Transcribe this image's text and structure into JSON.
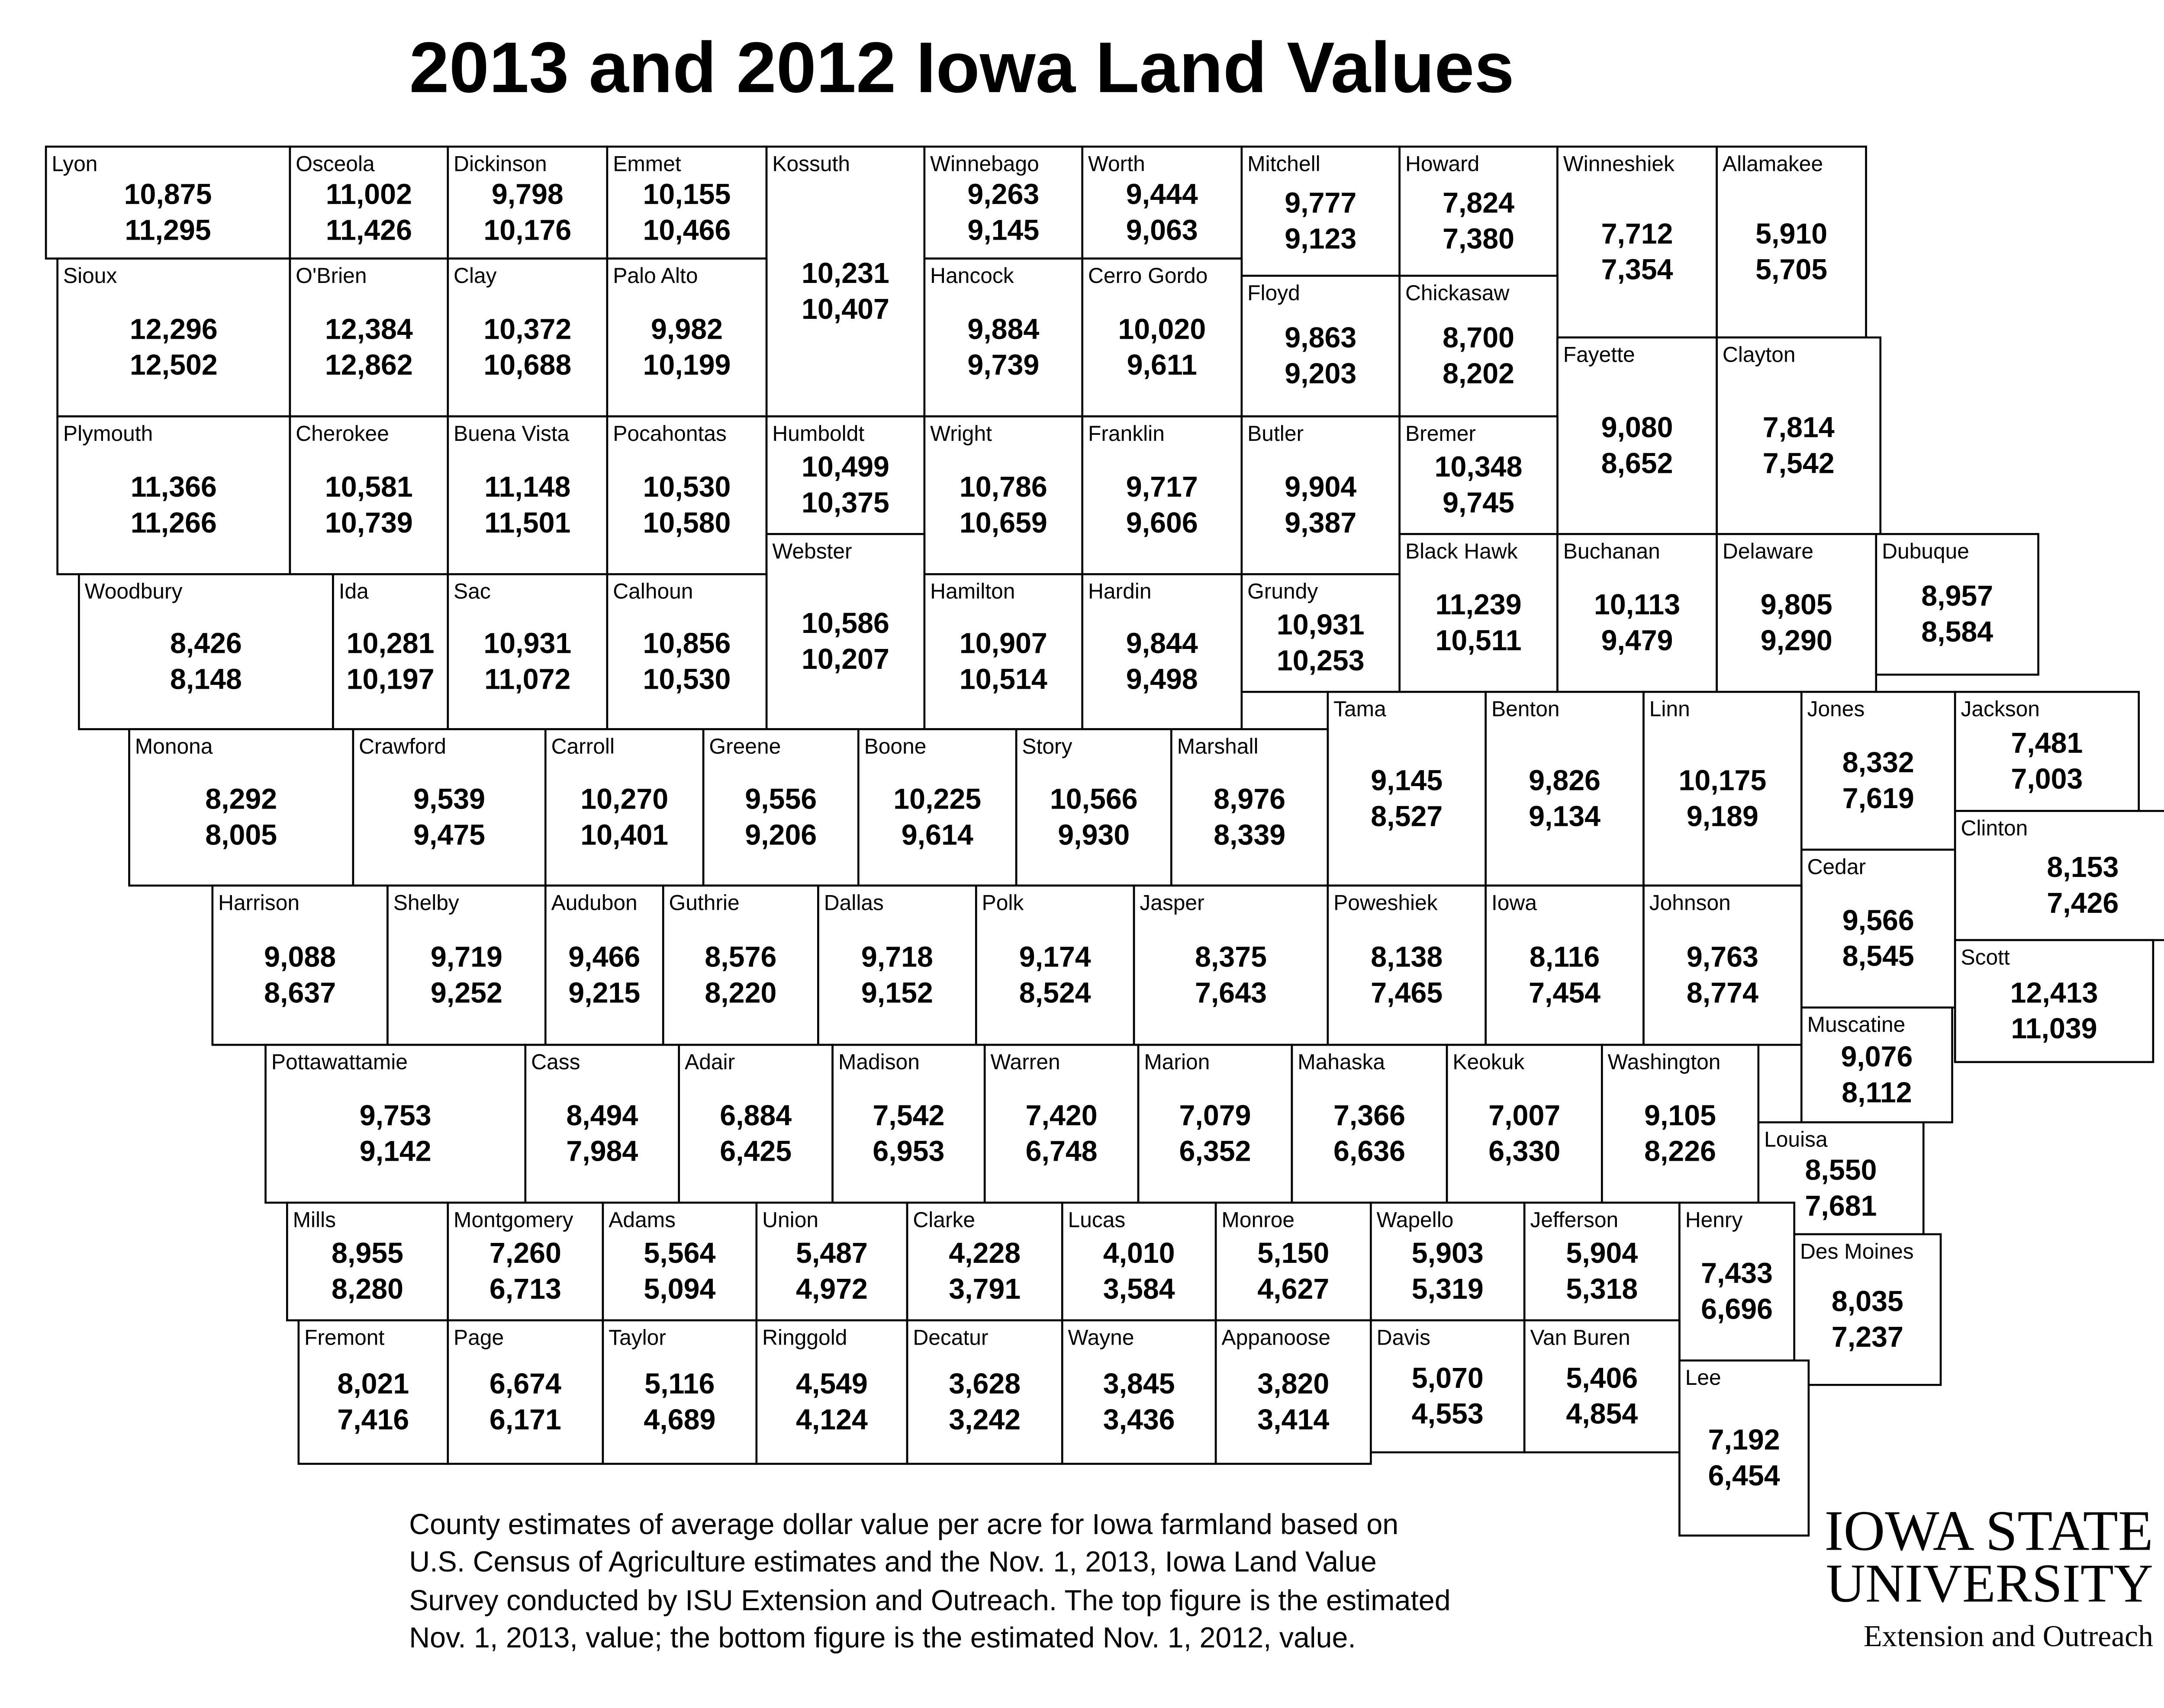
{
  "title": "2013 and 2012 Iowa Land Values",
  "counties": [
    [
      "Lyon",
      "10,875",
      "11,295"
    ],
    [
      "Osceola",
      "11,002",
      "11,426"
    ],
    [
      "Dickinson",
      "9,798",
      "10,176"
    ],
    [
      "Emmet",
      "10,155",
      "10,466"
    ],
    [
      "Kossuth",
      "10,231",
      "10,407"
    ],
    [
      "Winnebago",
      "9,263",
      "9,145"
    ],
    [
      "Worth",
      "9,444",
      "9,063"
    ],
    [
      "Mitchell",
      "9,777",
      "9,123"
    ],
    [
      "Howard",
      "7,824",
      "7,380"
    ],
    [
      "Winneshiek",
      "7,712",
      "7,354"
    ],
    [
      "Allamakee",
      "5,910",
      "5,705"
    ],
    [
      "Sioux",
      "12,296",
      "12,502"
    ],
    [
      "O'Brien",
      "12,384",
      "12,862"
    ],
    [
      "Clay",
      "10,372",
      "10,688"
    ],
    [
      "Palo Alto",
      "9,982",
      "10,199"
    ],
    [
      "Hancock",
      "9,884",
      "9,739"
    ],
    [
      "Cerro Gordo",
      "10,020",
      "9,611"
    ],
    [
      "Floyd",
      "9,863",
      "9,203"
    ],
    [
      "Chickasaw",
      "8,700",
      "8,202"
    ],
    [
      "Fayette",
      "9,080",
      "8,652"
    ],
    [
      "Clayton",
      "7,814",
      "7,542"
    ],
    [
      "Plymouth",
      "11,366",
      "11,266"
    ],
    [
      "Cherokee",
      "10,581",
      "10,739"
    ],
    [
      "Buena Vista",
      "11,148",
      "11,501"
    ],
    [
      "Pocahontas",
      "10,530",
      "10,580"
    ],
    [
      "Humboldt",
      "10,499",
      "10,375"
    ],
    [
      "Wright",
      "10,786",
      "10,659"
    ],
    [
      "Franklin",
      "9,717",
      "9,606"
    ],
    [
      "Butler",
      "9,904",
      "9,387"
    ],
    [
      "Bremer",
      "10,348",
      "9,745"
    ],
    [
      "Webster",
      "10,586",
      "10,207"
    ],
    [
      "Black Hawk",
      "11,239",
      "10,511"
    ],
    [
      "Buchanan",
      "10,113",
      "9,479"
    ],
    [
      "Delaware",
      "9,805",
      "9,290"
    ],
    [
      "Dubuque",
      "8,957",
      "8,584"
    ],
    [
      "Woodbury",
      "8,426",
      "8,148"
    ],
    [
      "Ida",
      "10,281",
      "10,197"
    ],
    [
      "Sac",
      "10,931",
      "11,072"
    ],
    [
      "Calhoun",
      "10,856",
      "10,530"
    ],
    [
      "Hamilton",
      "10,907",
      "10,514"
    ],
    [
      "Hardin",
      "9,844",
      "9,498"
    ],
    [
      "Grundy",
      "10,931",
      "10,253"
    ],
    [
      "Tama",
      "9,145",
      "8,527"
    ],
    [
      "Benton",
      "9,826",
      "9,134"
    ],
    [
      "Linn",
      "10,175",
      "9,189"
    ],
    [
      "Jones",
      "8,332",
      "7,619"
    ],
    [
      "Jackson",
      "7,481",
      "7,003"
    ],
    [
      "Monona",
      "8,292",
      "8,005"
    ],
    [
      "Crawford",
      "9,539",
      "9,475"
    ],
    [
      "Carroll",
      "10,270",
      "10,401"
    ],
    [
      "Greene",
      "9,556",
      "9,206"
    ],
    [
      "Boone",
      "10,225",
      "9,614"
    ],
    [
      "Story",
      "10,566",
      "9,930"
    ],
    [
      "Marshall",
      "8,976",
      "8,339"
    ],
    [
      "Clinton",
      "8,153",
      "7,426"
    ],
    [
      "Cedar",
      "9,566",
      "8,545"
    ],
    [
      "Scott",
      "12,413",
      "11,039"
    ],
    [
      "Harrison",
      "9,088",
      "8,637"
    ],
    [
      "Shelby",
      "9,719",
      "9,252"
    ],
    [
      "Audubon",
      "9,466",
      "9,215"
    ],
    [
      "Guthrie",
      "8,576",
      "8,220"
    ],
    [
      "Dallas",
      "9,718",
      "9,152"
    ],
    [
      "Polk",
      "9,174",
      "8,524"
    ],
    [
      "Jasper",
      "8,375",
      "7,643"
    ],
    [
      "Poweshiek",
      "8,138",
      "7,465"
    ],
    [
      "Iowa",
      "8,116",
      "7,454"
    ],
    [
      "Johnson",
      "9,763",
      "8,774"
    ],
    [
      "Muscatine",
      "9,076",
      "8,112"
    ],
    [
      "Pottawattamie",
      "9,753",
      "9,142"
    ],
    [
      "Cass",
      "8,494",
      "7,984"
    ],
    [
      "Adair",
      "6,884",
      "6,425"
    ],
    [
      "Madison",
      "7,542",
      "6,953"
    ],
    [
      "Warren",
      "7,420",
      "6,748"
    ],
    [
      "Marion",
      "7,079",
      "6,352"
    ],
    [
      "Mahaska",
      "7,366",
      "6,636"
    ],
    [
      "Keokuk",
      "7,007",
      "6,330"
    ],
    [
      "Washington",
      "9,105",
      "8,226"
    ],
    [
      "Louisa",
      "8,550",
      "7,681"
    ],
    [
      "Mills",
      "8,955",
      "8,280"
    ],
    [
      "Montgomery",
      "7,260",
      "6,713"
    ],
    [
      "Adams",
      "5,564",
      "5,094"
    ],
    [
      "Union",
      "5,487",
      "4,972"
    ],
    [
      "Clarke",
      "4,228",
      "3,791"
    ],
    [
      "Lucas",
      "4,010",
      "3,584"
    ],
    [
      "Monroe",
      "5,150",
      "4,627"
    ],
    [
      "Wapello",
      "5,903",
      "5,319"
    ],
    [
      "Jefferson",
      "5,904",
      "5,318"
    ],
    [
      "Henry",
      "7,433",
      "6,696"
    ],
    [
      "Des Moines",
      "8,035",
      "7,237"
    ],
    [
      "Fremont",
      "8,021",
      "7,416"
    ],
    [
      "Page",
      "6,674",
      "6,171"
    ],
    [
      "Taylor",
      "5,116",
      "4,689"
    ],
    [
      "Ringgold",
      "4,549",
      "4,124"
    ],
    [
      "Decatur",
      "3,628",
      "3,242"
    ],
    [
      "Wayne",
      "3,845",
      "3,436"
    ],
    [
      "Appanoose",
      "3,820",
      "3,414"
    ],
    [
      "Davis",
      "5,070",
      "4,553"
    ],
    [
      "Van Buren",
      "5,406",
      "4,854"
    ],
    [
      "Lee",
      "7,192",
      "6,454"
    ]
  ],
  "footnote": [
    "County estimates of average dollar value per acre for Iowa farmland based on",
    "U.S. Census of Agriculture estimates and the Nov. 1, 2013, Iowa Land Value",
    "Survey conducted by ISU Extension and Outreach. The top figure is the estimated",
    "Nov. 1, 2013, value; the bottom figure is the estimated Nov. 1, 2012, value."
  ],
  "logo": {
    "line1": "IOWA STATE",
    "line2": "UNIVERSITY",
    "line3": "Extension and Outreach"
  }
}
